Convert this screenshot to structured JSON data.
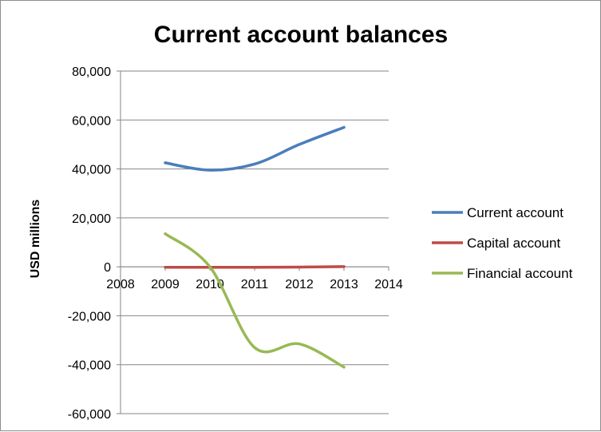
{
  "chart_data": {
    "type": "line",
    "title": "Current account balances",
    "xlabel": "",
    "ylabel": "USD millions",
    "xlim": [
      2008,
      2014
    ],
    "ylim": [
      -60000,
      80000
    ],
    "x_ticks": [
      "2008",
      "2009",
      "2010",
      "2011",
      "2012",
      "2013",
      "2014"
    ],
    "y_ticks": [
      "80,000",
      "60,000",
      "40,000",
      "20,000",
      "0",
      "-20,000",
      "-40,000",
      "-60,000"
    ],
    "grid": "horizontal",
    "legend_position": "right",
    "x": [
      2009,
      2010,
      2011,
      2012,
      2013
    ],
    "series": [
      {
        "name": "Current account",
        "color": "#4a7ebb",
        "values": [
          42500,
          39500,
          42000,
          50000,
          57000
        ]
      },
      {
        "name": "Capital account",
        "color": "#be4b48",
        "values": [
          -200,
          -200,
          -200,
          -100,
          100
        ]
      },
      {
        "name": "Financial account",
        "color": "#98b954",
        "values": [
          13500,
          0,
          -33000,
          -31500,
          -41000
        ]
      }
    ]
  }
}
